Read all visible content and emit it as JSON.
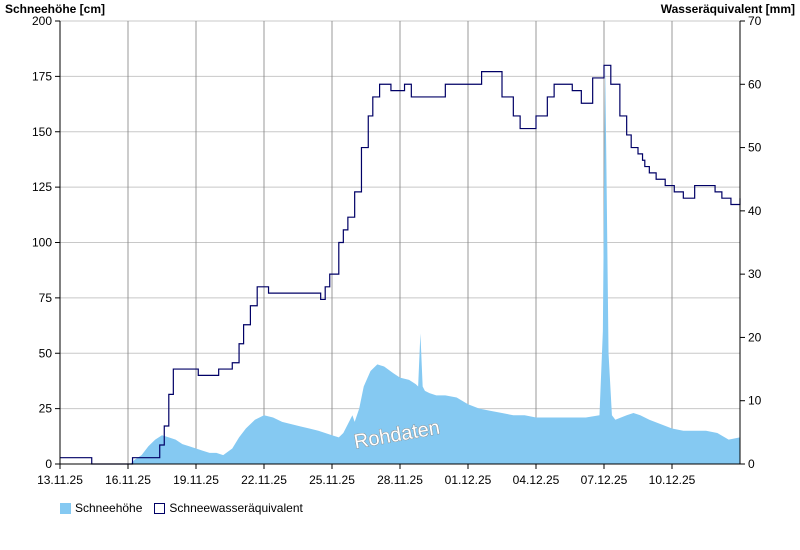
{
  "chart_data": {
    "type": "area+line",
    "title": "",
    "left_axis": {
      "label": "Schneehöhe [cm]",
      "ylim": [
        0,
        200
      ],
      "ticks": [
        0,
        25,
        50,
        75,
        100,
        125,
        150,
        175,
        200
      ]
    },
    "right_axis": {
      "label": "Wasseräquivalent [mm]",
      "ylim": [
        0,
        70
      ],
      "ticks": [
        0,
        10,
        20,
        30,
        40,
        50,
        60,
        70
      ]
    },
    "x_ticks": [
      "13.11.25",
      "16.11.25",
      "19.11.25",
      "22.11.25",
      "25.11.25",
      "28.11.25",
      "01.12.25",
      "04.12.25",
      "07.12.25",
      "10.12.25"
    ],
    "x_range_days": [
      0,
      30
    ],
    "watermark": "Rohdaten",
    "legend_position": "bottom-left",
    "colors": {
      "snow": "#85c9f2",
      "swe": "#000066",
      "grid": "#c8c8c8",
      "vline": "#808080"
    },
    "series": [
      {
        "name": "Schneehöhe",
        "axis": "left",
        "style": "area",
        "x": [
          0,
          2.8,
          3.1,
          3.3,
          3.6,
          3.9,
          4.2,
          4.5,
          4.8,
          5.1,
          5.4,
          5.7,
          6.0,
          6.3,
          6.6,
          6.9,
          7.2,
          7.6,
          7.9,
          8.2,
          8.6,
          9.0,
          9.4,
          9.8,
          10.2,
          10.6,
          11.0,
          11.4,
          11.7,
          12.0,
          12.3,
          12.5,
          12.7,
          12.9,
          13.0,
          13.2,
          13.4,
          13.7,
          14.0,
          14.3,
          14.7,
          15.0,
          15.4,
          15.7,
          15.8,
          15.9,
          16.0,
          16.1,
          16.3,
          16.6,
          17.0,
          17.5,
          18.0,
          18.5,
          19.0,
          19.5,
          20.0,
          20.5,
          21.0,
          21.5,
          22.0,
          22.4,
          22.8,
          23.2,
          23.8,
          23.95,
          24.05,
          24.1,
          24.2,
          24.35,
          24.5,
          25.0,
          25.3,
          25.6,
          26.0,
          26.5,
          27.0,
          27.5,
          28.0,
          28.5,
          29.0,
          29.5,
          30.0
        ],
        "values": [
          0,
          0,
          0,
          2,
          4,
          8,
          11,
          13,
          12,
          11,
          9,
          8,
          7,
          6,
          5,
          5,
          4,
          7,
          12,
          16,
          20,
          22,
          21,
          19,
          18,
          17,
          16,
          15,
          14,
          13,
          12,
          14,
          18,
          22,
          19,
          25,
          35,
          42,
          45,
          44,
          41,
          39,
          38,
          36,
          35,
          59,
          35,
          33,
          32,
          31,
          31,
          30,
          27,
          25,
          24,
          23,
          22,
          22,
          21,
          21,
          21,
          21,
          21,
          21,
          22,
          60,
          180,
          140,
          50,
          22,
          20,
          22,
          23,
          22,
          20,
          18,
          16,
          15,
          15,
          15,
          14,
          11,
          12
        ]
      },
      {
        "name": "Schneewasseräquivalent",
        "axis": "right",
        "style": "line",
        "x": [
          0,
          1.1,
          1.4,
          2.2,
          2.5,
          3.2,
          3.4,
          3.7,
          4.0,
          4.4,
          4.6,
          4.8,
          5.0,
          5.2,
          6.1,
          6.3,
          6.8,
          7.0,
          7.3,
          7.6,
          7.9,
          8.1,
          8.4,
          8.7,
          9.0,
          9.2,
          9.5,
          10.0,
          11.0,
          11.5,
          11.7,
          11.9,
          12.3,
          12.5,
          12.7,
          13.0,
          13.3,
          13.6,
          13.8,
          14.1,
          14.3,
          14.6,
          15.0,
          15.2,
          15.5,
          16.0,
          16.3,
          16.5,
          17.0,
          17.6,
          18.0,
          18.3,
          18.6,
          19.5,
          20.0,
          20.3,
          20.5,
          21.0,
          21.5,
          21.8,
          22.0,
          22.3,
          22.6,
          23.0,
          23.5,
          24.0,
          24.3,
          24.7,
          25.0,
          25.2,
          25.5,
          25.7,
          25.8,
          26.0,
          26.3,
          26.7,
          27.1,
          27.5,
          28.0,
          28.5,
          28.9,
          29.2,
          29.6,
          30.0
        ],
        "values": [
          1,
          1,
          0,
          0,
          0,
          1,
          1,
          1,
          1,
          3,
          6,
          11,
          15,
          15,
          14,
          14,
          14,
          15,
          15,
          16,
          19,
          22,
          25,
          28,
          28,
          27,
          27,
          27,
          27,
          26,
          28,
          30,
          35,
          37,
          39,
          43,
          50,
          55,
          58,
          60,
          60,
          59,
          59,
          60,
          58,
          58,
          58,
          58,
          60,
          60,
          60,
          60,
          62,
          58,
          55,
          53,
          53,
          55,
          58,
          60,
          60,
          60,
          59,
          57,
          61,
          63,
          60,
          55,
          52,
          50,
          49,
          48,
          47,
          46,
          45,
          44,
          43,
          42,
          44,
          44,
          43,
          42,
          41,
          42
        ]
      }
    ]
  }
}
